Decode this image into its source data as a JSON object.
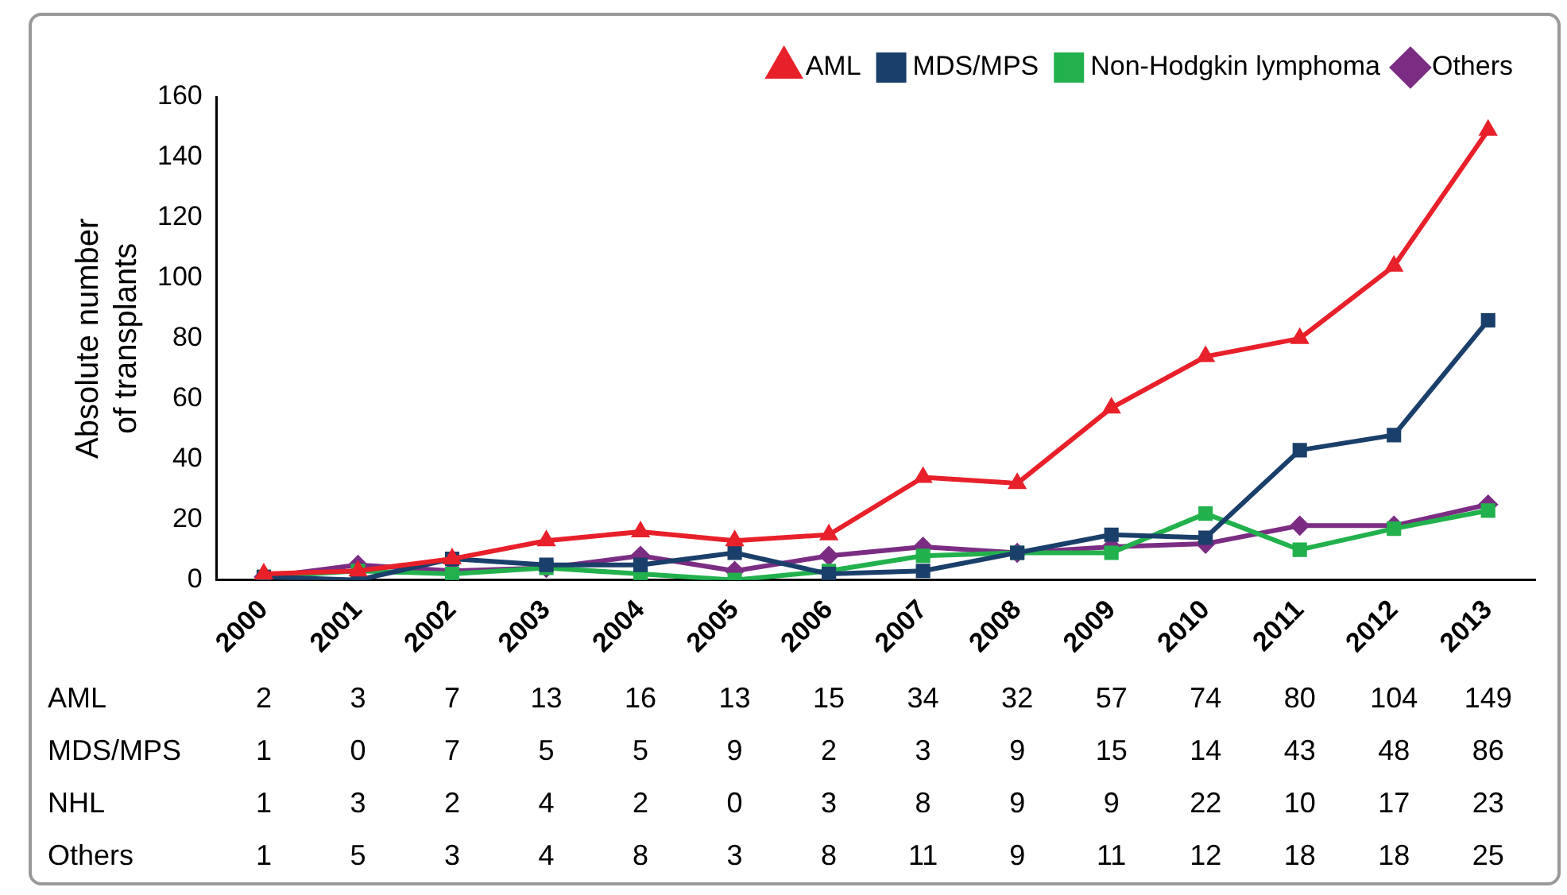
{
  "chart_data": {
    "type": "line",
    "ylabel": "Absolute number of transplants",
    "categories": [
      "2000",
      "2001",
      "2002",
      "2003",
      "2004",
      "2005",
      "2006",
      "2007",
      "2008",
      "2009",
      "2010",
      "2011",
      "2012",
      "2013"
    ],
    "series": [
      {
        "name": "AML",
        "color": "#e8202a",
        "marker": "triangle",
        "values": [
          2,
          3,
          7,
          13,
          16,
          13,
          15,
          34,
          32,
          57,
          74,
          80,
          104,
          149
        ]
      },
      {
        "name": "MDS/MPS",
        "color": "#1b3f6b",
        "marker": "square",
        "values": [
          1,
          0,
          7,
          5,
          5,
          9,
          2,
          3,
          9,
          15,
          14,
          43,
          48,
          86
        ]
      },
      {
        "name": "Non-Hodgkin lymphoma",
        "color": "#22b14c",
        "marker": "square",
        "values": [
          1,
          3,
          2,
          4,
          2,
          0,
          3,
          8,
          9,
          9,
          22,
          10,
          17,
          23
        ]
      },
      {
        "name": "Others",
        "color": "#7b2d83",
        "marker": "diamond",
        "values": [
          1,
          5,
          3,
          4,
          8,
          3,
          8,
          11,
          9,
          11,
          12,
          18,
          18,
          25
        ]
      }
    ],
    "annotations": [
      "AML",
      "MDS/MPS",
      "NHL",
      "Others"
    ],
    "ylim": [
      0,
      160
    ],
    "yticks": [
      0,
      20,
      40,
      60,
      80,
      100,
      120,
      140,
      160
    ],
    "grid": false,
    "legend": "top right",
    "data_labels": true,
    "line_style": "solid"
  }
}
